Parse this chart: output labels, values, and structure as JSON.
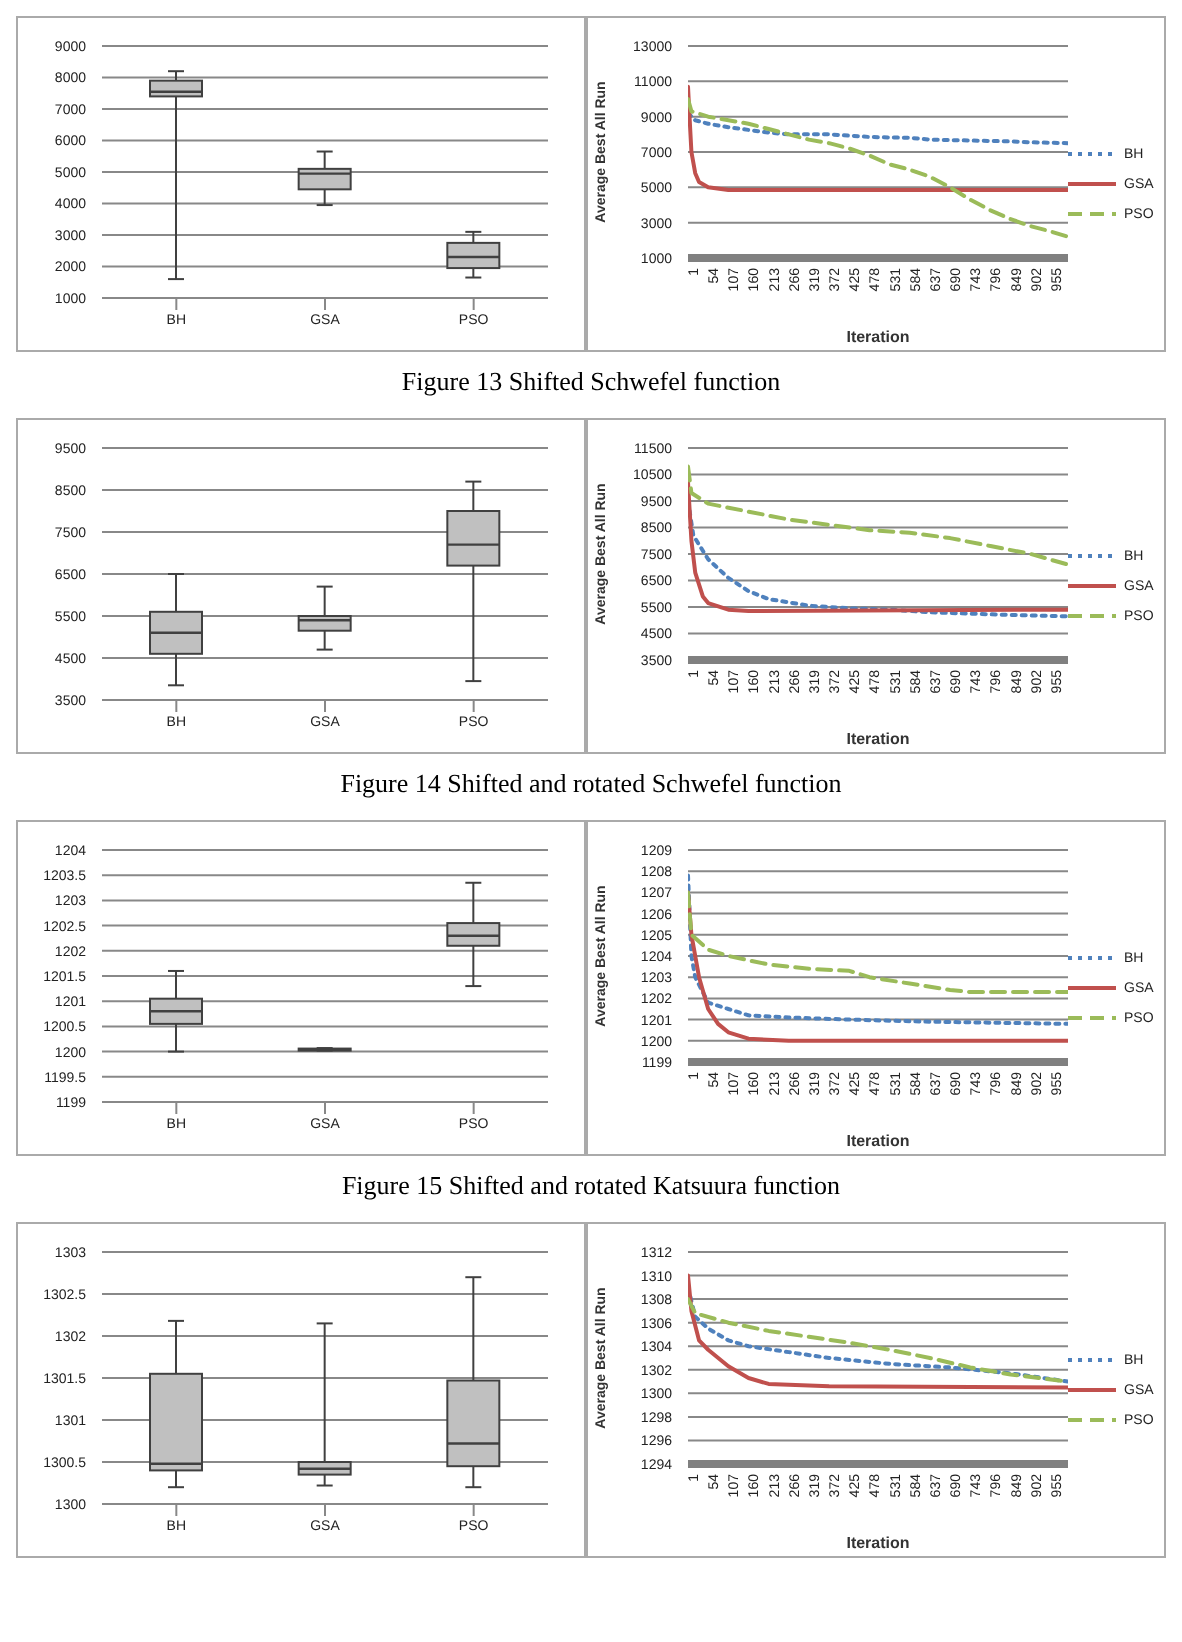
{
  "chart_data": [
    {
      "type": "box",
      "categories": [
        "BH",
        "GSA",
        "PSO"
      ],
      "color": "#c0c0c0",
      "ylim": [
        1000,
        9000
      ],
      "yticks": [
        1000,
        2000,
        3000,
        4000,
        5000,
        6000,
        7000,
        8000,
        9000
      ],
      "grid": "y",
      "annotations": [
        "Figure 13 Shifted Schwefel function"
      ],
      "boxes": [
        {
          "low": 1600,
          "q1": 7400,
          "median": 7550,
          "q3": 7900,
          "high": 8200
        },
        {
          "low": 3950,
          "q1": 4450,
          "median": 4950,
          "q3": 5100,
          "high": 5650
        },
        {
          "low": 1650,
          "q1": 1950,
          "median": 2300,
          "q3": 2750,
          "high": 3100
        }
      ]
    },
    {
      "type": "line",
      "xlabel": "Iteration",
      "ylabel": "Average Best  All Run",
      "xlim": [
        1,
        1000
      ],
      "xticks": [
        1,
        54,
        107,
        160,
        213,
        266,
        319,
        372,
        425,
        478,
        531,
        584,
        637,
        690,
        743,
        796,
        849,
        902,
        955
      ],
      "ylim": [
        1000,
        13000
      ],
      "yticks": [
        1000,
        3000,
        5000,
        7000,
        9000,
        11000,
        13000
      ],
      "grid": "y",
      "legend": "right",
      "series": [
        {
          "name": "BH",
          "color": "#4f81bd",
          "line_style": "dotted",
          "x": [
            1,
            20,
            54,
            107,
            213,
            266,
            372,
            478,
            584,
            637,
            743,
            849,
            902,
            1000
          ],
          "values": [
            9200,
            8800,
            8600,
            8400,
            8100,
            8000,
            8000,
            7850,
            7800,
            7700,
            7650,
            7600,
            7550,
            7500
          ]
        },
        {
          "name": "GSA",
          "color": "#c0504d",
          "line_style": "solid",
          "x": [
            1,
            5,
            10,
            20,
            30,
            54,
            107,
            1000
          ],
          "values": [
            10700,
            9000,
            7000,
            5800,
            5300,
            5000,
            4850,
            4850
          ]
        },
        {
          "name": "PSO",
          "color": "#9bbb59",
          "line_style": "dashed",
          "x": [
            1,
            10,
            54,
            160,
            213,
            319,
            372,
            425,
            478,
            531,
            584,
            637,
            690,
            743,
            796,
            849,
            902,
            955,
            1000
          ],
          "values": [
            10000,
            9300,
            9000,
            8600,
            8300,
            7700,
            7500,
            7200,
            6800,
            6300,
            6000,
            5600,
            5000,
            4300,
            3700,
            3200,
            2800,
            2500,
            2200
          ]
        }
      ]
    },
    {
      "type": "box",
      "categories": [
        "BH",
        "GSA",
        "PSO"
      ],
      "color": "#c0c0c0",
      "ylim": [
        3500,
        9500
      ],
      "yticks": [
        3500,
        4500,
        5500,
        6500,
        7500,
        8500,
        9500
      ],
      "grid": "y",
      "annotations": [
        "Figure 14 Shifted and rotated Schwefel function"
      ],
      "boxes": [
        {
          "low": 3850,
          "q1": 4600,
          "median": 5100,
          "q3": 5600,
          "high": 6500
        },
        {
          "low": 4700,
          "q1": 5150,
          "median": 5400,
          "q3": 5500,
          "high": 6200
        },
        {
          "low": 3950,
          "q1": 6700,
          "median": 7200,
          "q3": 8000,
          "high": 8700
        }
      ]
    },
    {
      "type": "line",
      "xlabel": "Iteration",
      "ylabel": "Average Best  All Run",
      "xlim": [
        1,
        1000
      ],
      "xticks": [
        1,
        54,
        107,
        160,
        213,
        266,
        319,
        372,
        425,
        478,
        531,
        584,
        637,
        690,
        743,
        796,
        849,
        902,
        955
      ],
      "ylim": [
        3500,
        11500
      ],
      "yticks": [
        3500,
        4500,
        5500,
        6500,
        7500,
        8500,
        9500,
        10500,
        11500
      ],
      "grid": "y",
      "legend": "right",
      "series": [
        {
          "name": "BH",
          "color": "#4f81bd",
          "line_style": "dotted",
          "x": [
            1,
            15,
            54,
            107,
            160,
            213,
            319,
            425,
            531,
            637,
            743,
            849,
            1000
          ],
          "values": [
            9500,
            8200,
            7300,
            6600,
            6100,
            5800,
            5550,
            5450,
            5400,
            5300,
            5250,
            5200,
            5150
          ]
        },
        {
          "name": "GSA",
          "color": "#c0504d",
          "line_style": "solid",
          "x": [
            1,
            10,
            20,
            40,
            54,
            107,
            160,
            1000
          ],
          "values": [
            10200,
            8000,
            6800,
            5900,
            5650,
            5400,
            5350,
            5400
          ]
        },
        {
          "name": "PSO",
          "color": "#9bbb59",
          "line_style": "dashed",
          "x": [
            1,
            10,
            54,
            160,
            266,
            372,
            478,
            584,
            690,
            796,
            902,
            1000
          ],
          "values": [
            10800,
            9800,
            9400,
            9100,
            8800,
            8600,
            8400,
            8300,
            8100,
            7800,
            7500,
            7100
          ]
        }
      ]
    },
    {
      "type": "box",
      "categories": [
        "BH",
        "GSA",
        "PSO"
      ],
      "color": "#c0c0c0",
      "ylim": [
        1199,
        1204
      ],
      "yticks": [
        1199,
        1199.5,
        1200,
        1200.5,
        1201,
        1201.5,
        1202,
        1202.5,
        1203,
        1203.5,
        1204
      ],
      "grid": "y",
      "annotations": [
        "Figure 15 Shifted and rotated Katsuura function"
      ],
      "boxes": [
        {
          "low": 1200,
          "q1": 1200.55,
          "median": 1200.8,
          "q3": 1201.05,
          "high": 1201.6
        },
        {
          "low": 1200.02,
          "q1": 1200.03,
          "median": 1200.05,
          "q3": 1200.06,
          "high": 1200.07
        },
        {
          "low": 1201.3,
          "q1": 1202.1,
          "median": 1202.3,
          "q3": 1202.55,
          "high": 1203.35
        }
      ]
    },
    {
      "type": "line",
      "xlabel": "Iteration",
      "ylabel": "Average Best  All Run",
      "xlim": [
        1,
        1000
      ],
      "xticks": [
        1,
        54,
        107,
        160,
        213,
        266,
        319,
        372,
        425,
        478,
        531,
        584,
        637,
        690,
        743,
        796,
        849,
        902,
        955
      ],
      "ylim": [
        1199,
        1209
      ],
      "yticks": [
        1199,
        1200,
        1201,
        1202,
        1203,
        1204,
        1205,
        1206,
        1207,
        1208,
        1209
      ],
      "grid": "y",
      "legend": "right",
      "series": [
        {
          "name": "BH",
          "color": "#4f81bd",
          "line_style": "dotted",
          "x": [
            1,
            10,
            20,
            54,
            107,
            160,
            266,
            425,
            637,
            1000
          ],
          "values": [
            1207.8,
            1204,
            1203,
            1201.8,
            1201.5,
            1201.2,
            1201.1,
            1201,
            1200.9,
            1200.8
          ]
        },
        {
          "name": "GSA",
          "color": "#c0504d",
          "line_style": "solid",
          "x": [
            1,
            10,
            30,
            54,
            80,
            107,
            160,
            266,
            1000
          ],
          "values": [
            1207,
            1205,
            1203,
            1201.5,
            1200.8,
            1200.4,
            1200.1,
            1200,
            1200
          ]
        },
        {
          "name": "PSO",
          "color": "#9bbb59",
          "line_style": "dashed",
          "x": [
            1,
            10,
            54,
            107,
            213,
            319,
            425,
            478,
            584,
            690,
            743,
            1000
          ],
          "values": [
            1207,
            1205,
            1204.3,
            1204,
            1203.6,
            1203.4,
            1203.3,
            1203,
            1202.7,
            1202.4,
            1202.3,
            1202.3
          ]
        }
      ]
    },
    {
      "type": "box",
      "categories": [
        "BH",
        "GSA",
        "PSO"
      ],
      "color": "#c0c0c0",
      "ylim": [
        1300,
        1303
      ],
      "yticks": [
        1300,
        1300.5,
        1301,
        1301.5,
        1302,
        1302.5,
        1303
      ],
      "grid": "y",
      "boxes": [
        {
          "low": 1300.2,
          "q1": 1300.4,
          "median": 1300.48,
          "q3": 1301.55,
          "high": 1302.18
        },
        {
          "low": 1300.22,
          "q1": 1300.35,
          "median": 1300.42,
          "q3": 1300.5,
          "high": 1302.15
        },
        {
          "low": 1300.2,
          "q1": 1300.45,
          "median": 1300.72,
          "q3": 1301.47,
          "high": 1302.7
        }
      ]
    },
    {
      "type": "line",
      "xlabel": "Iteration",
      "ylabel": "Average Best  All Run",
      "xlim": [
        1,
        1000
      ],
      "xticks": [
        1,
        54,
        107,
        160,
        213,
        266,
        319,
        372,
        425,
        478,
        531,
        584,
        637,
        690,
        743,
        796,
        849,
        902,
        955
      ],
      "ylim": [
        1294,
        1312
      ],
      "yticks": [
        1294,
        1296,
        1298,
        1300,
        1302,
        1304,
        1306,
        1308,
        1310,
        1312
      ],
      "grid": "y",
      "legend": "right",
      "series": [
        {
          "name": "BH",
          "color": "#4f81bd",
          "line_style": "dotted",
          "x": [
            1,
            20,
            54,
            107,
            160,
            266,
            372,
            531,
            690,
            849,
            1000
          ],
          "values": [
            1309,
            1306.5,
            1305.5,
            1304.5,
            1304,
            1303.5,
            1303,
            1302.5,
            1302.2,
            1301.7,
            1301
          ]
        },
        {
          "name": "GSA",
          "color": "#c0504d",
          "line_style": "solid",
          "x": [
            1,
            10,
            30,
            54,
            107,
            160,
            213,
            372,
            1000
          ],
          "values": [
            1310,
            1307,
            1304.5,
            1303.7,
            1302.3,
            1301.3,
            1300.8,
            1300.6,
            1300.5
          ]
        },
        {
          "name": "PSO",
          "color": "#9bbb59",
          "line_style": "dashed",
          "x": [
            1,
            20,
            107,
            213,
            319,
            425,
            531,
            637,
            743,
            849,
            1000
          ],
          "values": [
            1308,
            1306.8,
            1306,
            1305.3,
            1304.8,
            1304.3,
            1303.7,
            1303,
            1302.2,
            1301.6,
            1301
          ]
        }
      ]
    }
  ]
}
